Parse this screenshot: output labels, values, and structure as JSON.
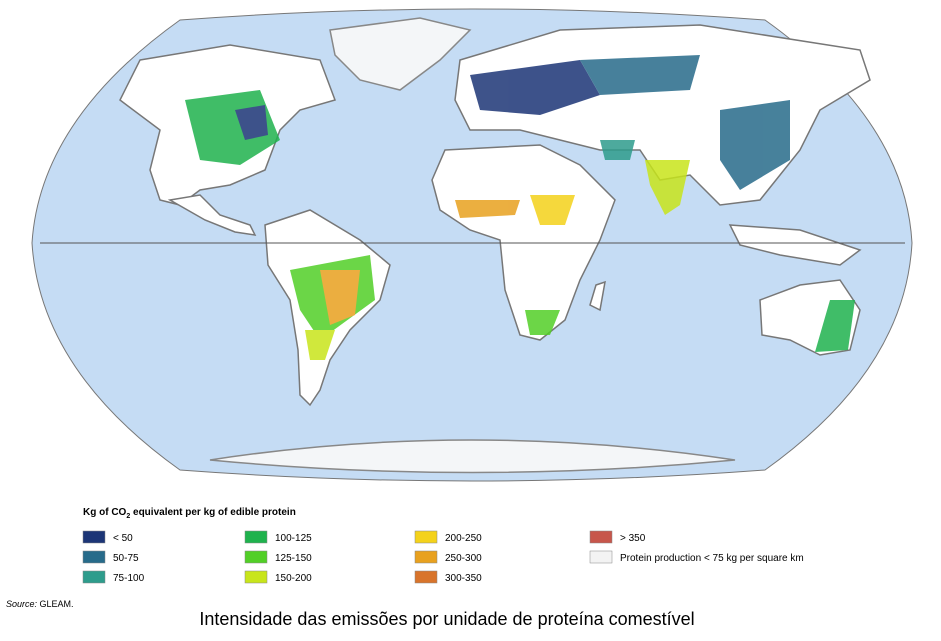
{
  "legend": {
    "title_prefix": "Kg of CO",
    "title_subscript": "2",
    "title_suffix": " equivalent per kg of edible protein",
    "items": [
      {
        "label": "< 50",
        "color": "#1c3576"
      },
      {
        "label": "50-75",
        "color": "#276b8a"
      },
      {
        "label": "75-100",
        "color": "#2e9c8c"
      },
      {
        "label": "100-125",
        "color": "#1fb24d"
      },
      {
        "label": "125-150",
        "color": "#52cf27"
      },
      {
        "label": "150-200",
        "color": "#c8e51b"
      },
      {
        "label": "200-250",
        "color": "#f4d21b"
      },
      {
        "label": "250-300",
        "color": "#e8a11f"
      },
      {
        "label": "300-350",
        "color": "#d8742b"
      },
      {
        "label": "> 350",
        "color": "#c7564b"
      },
      {
        "label": "Protein production < 75 kg per square km",
        "color": "#f3f3f3"
      }
    ]
  },
  "source": {
    "label": "Source:",
    "text": "GLEAM."
  },
  "caption": "Intensidade das emissões por unidade de proteína comestível"
}
